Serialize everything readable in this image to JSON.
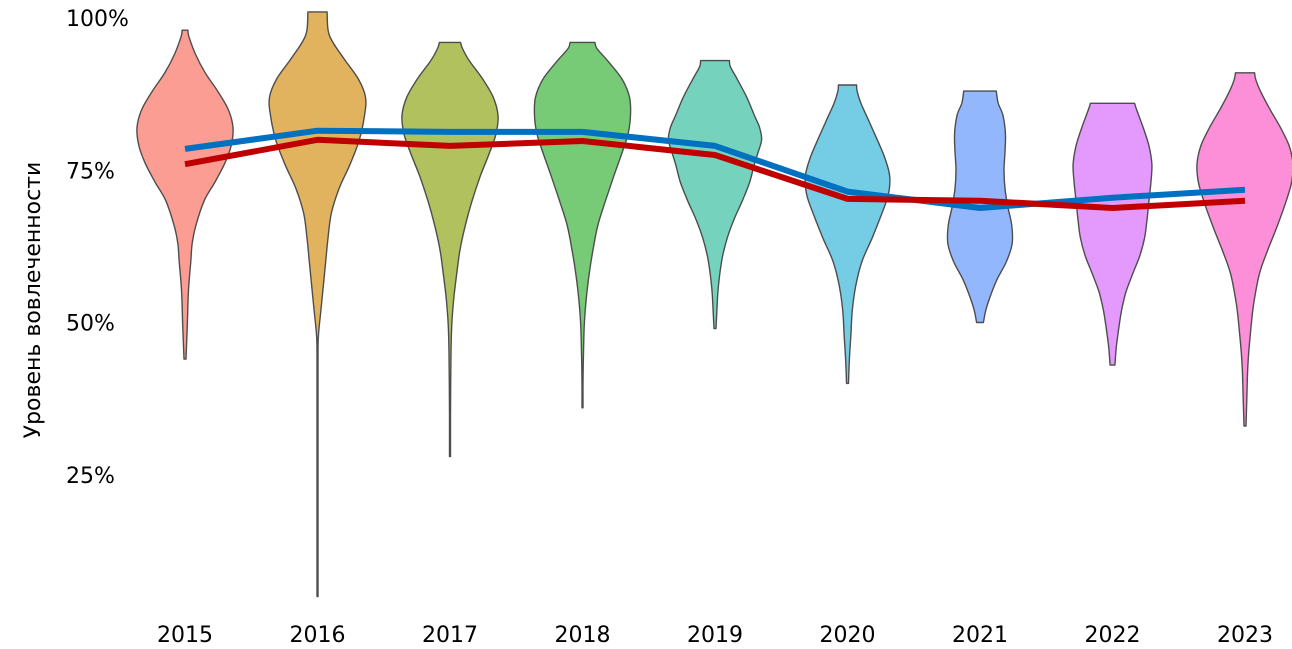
{
  "chart_data": {
    "type": "violin",
    "title": "",
    "xlabel": "",
    "ylabel": "Уровень вовлеченности",
    "ylim": [
      0,
      100
    ],
    "y_ticks": [
      {
        "value": 25,
        "label": "25%"
      },
      {
        "value": 50,
        "label": "50%"
      },
      {
        "value": 75,
        "label": "75%"
      },
      {
        "value": 100,
        "label": "100%"
      }
    ],
    "categories": [
      "2015",
      "2016",
      "2017",
      "2018",
      "2019",
      "2020",
      "2021",
      "2022",
      "2023"
    ],
    "grid": false,
    "legend": "none",
    "violins": [
      {
        "category": "2015",
        "color": "#fc9d94",
        "min": 44,
        "max": 98,
        "profile": [
          [
            44,
            0.02
          ],
          [
            50,
            0.05
          ],
          [
            55,
            0.07
          ],
          [
            60,
            0.12
          ],
          [
            63,
            0.15
          ],
          [
            66,
            0.23
          ],
          [
            70,
            0.4
          ],
          [
            73,
            0.62
          ],
          [
            76,
            0.82
          ],
          [
            79,
            0.96
          ],
          [
            82,
            1.0
          ],
          [
            85,
            0.9
          ],
          [
            88,
            0.68
          ],
          [
            91,
            0.42
          ],
          [
            94,
            0.22
          ],
          [
            97,
            0.08
          ],
          [
            98,
            0.06
          ]
        ]
      },
      {
        "category": "2016",
        "color": "#e2b35f",
        "min": 5,
        "max": 101,
        "profile": [
          [
            5,
            0.01
          ],
          [
            20,
            0.01
          ],
          [
            35,
            0.01
          ],
          [
            45,
            0.01
          ],
          [
            48,
            0.02
          ],
          [
            52,
            0.07
          ],
          [
            56,
            0.12
          ],
          [
            60,
            0.17
          ],
          [
            64,
            0.22
          ],
          [
            68,
            0.29
          ],
          [
            72,
            0.45
          ],
          [
            76,
            0.68
          ],
          [
            80,
            0.87
          ],
          [
            84,
            0.98
          ],
          [
            87,
            1.0
          ],
          [
            90,
            0.85
          ],
          [
            93,
            0.58
          ],
          [
            96,
            0.32
          ],
          [
            98,
            0.22
          ],
          [
            101,
            0.2
          ]
        ]
      },
      {
        "category": "2017",
        "color": "#b1c15e",
        "min": 28,
        "max": 96,
        "profile": [
          [
            28,
            0.01
          ],
          [
            35,
            0.01
          ],
          [
            45,
            0.02
          ],
          [
            50,
            0.04
          ],
          [
            54,
            0.08
          ],
          [
            58,
            0.14
          ],
          [
            62,
            0.21
          ],
          [
            66,
            0.32
          ],
          [
            70,
            0.46
          ],
          [
            74,
            0.63
          ],
          [
            78,
            0.83
          ],
          [
            81,
            0.96
          ],
          [
            84,
            1.0
          ],
          [
            87,
            0.9
          ],
          [
            90,
            0.68
          ],
          [
            93,
            0.4
          ],
          [
            95,
            0.26
          ],
          [
            96,
            0.22
          ]
        ]
      },
      {
        "category": "2018",
        "color": "#77cb77",
        "min": 36,
        "max": 96,
        "profile": [
          [
            36,
            0.01
          ],
          [
            40,
            0.01
          ],
          [
            45,
            0.02
          ],
          [
            50,
            0.04
          ],
          [
            54,
            0.08
          ],
          [
            58,
            0.14
          ],
          [
            62,
            0.22
          ],
          [
            66,
            0.32
          ],
          [
            70,
            0.48
          ],
          [
            74,
            0.65
          ],
          [
            78,
            0.83
          ],
          [
            81,
            0.95
          ],
          [
            84,
            1.0
          ],
          [
            87,
            0.98
          ],
          [
            90,
            0.82
          ],
          [
            93,
            0.52
          ],
          [
            95,
            0.3
          ],
          [
            96,
            0.26
          ]
        ]
      },
      {
        "category": "2019",
        "color": "#75d2bd",
        "min": 49,
        "max": 93,
        "profile": [
          [
            49,
            0.02
          ],
          [
            52,
            0.04
          ],
          [
            55,
            0.06
          ],
          [
            58,
            0.1
          ],
          [
            61,
            0.16
          ],
          [
            64,
            0.26
          ],
          [
            67,
            0.4
          ],
          [
            70,
            0.57
          ],
          [
            73,
            0.72
          ],
          [
            76,
            0.82
          ],
          [
            78,
            0.9
          ],
          [
            80,
            0.97
          ],
          [
            82,
            0.93
          ],
          [
            84,
            0.82
          ],
          [
            87,
            0.66
          ],
          [
            90,
            0.46
          ],
          [
            92,
            0.32
          ],
          [
            93,
            0.3
          ]
        ]
      },
      {
        "category": "2020",
        "color": "#74cce5",
        "min": 40,
        "max": 89,
        "profile": [
          [
            40,
            0.02
          ],
          [
            44,
            0.04
          ],
          [
            48,
            0.07
          ],
          [
            52,
            0.1
          ],
          [
            56,
            0.17
          ],
          [
            60,
            0.3
          ],
          [
            64,
            0.52
          ],
          [
            68,
            0.72
          ],
          [
            71,
            0.85
          ],
          [
            74,
            0.88
          ],
          [
            77,
            0.78
          ],
          [
            80,
            0.62
          ],
          [
            83,
            0.45
          ],
          [
            86,
            0.28
          ],
          [
            88,
            0.2
          ],
          [
            89,
            0.19
          ]
        ]
      },
      {
        "category": "2021",
        "color": "#93b7fc",
        "min": 50,
        "max": 88,
        "profile": [
          [
            50,
            0.07
          ],
          [
            52,
            0.12
          ],
          [
            54,
            0.2
          ],
          [
            57,
            0.35
          ],
          [
            60,
            0.55
          ],
          [
            63,
            0.67
          ],
          [
            66,
            0.66
          ],
          [
            69,
            0.58
          ],
          [
            72,
            0.52
          ],
          [
            75,
            0.5
          ],
          [
            78,
            0.52
          ],
          [
            81,
            0.53
          ],
          [
            84,
            0.48
          ],
          [
            86,
            0.38
          ],
          [
            88,
            0.34
          ]
        ]
      },
      {
        "category": "2022",
        "color": "#e49afc",
        "min": 43,
        "max": 86,
        "profile": [
          [
            43,
            0.05
          ],
          [
            46,
            0.08
          ],
          [
            49,
            0.13
          ],
          [
            52,
            0.19
          ],
          [
            55,
            0.28
          ],
          [
            58,
            0.42
          ],
          [
            61,
            0.57
          ],
          [
            64,
            0.67
          ],
          [
            67,
            0.72
          ],
          [
            70,
            0.76
          ],
          [
            73,
            0.8
          ],
          [
            76,
            0.82
          ],
          [
            79,
            0.76
          ],
          [
            82,
            0.64
          ],
          [
            85,
            0.5
          ],
          [
            86,
            0.46
          ]
        ]
      },
      {
        "category": "2023",
        "color": "#fc8fd8",
        "min": 33,
        "max": 91,
        "profile": [
          [
            33,
            0.02
          ],
          [
            38,
            0.04
          ],
          [
            43,
            0.06
          ],
          [
            48,
            0.11
          ],
          [
            53,
            0.18
          ],
          [
            58,
            0.3
          ],
          [
            62,
            0.48
          ],
          [
            66,
            0.68
          ],
          [
            70,
            0.86
          ],
          [
            73,
            0.97
          ],
          [
            76,
            1.0
          ],
          [
            79,
            0.92
          ],
          [
            82,
            0.74
          ],
          [
            85,
            0.52
          ],
          [
            88,
            0.32
          ],
          [
            90,
            0.22
          ],
          [
            91,
            0.2
          ]
        ]
      }
    ],
    "series": [
      {
        "color": "#0070c0",
        "values": [
          78.5,
          81.5,
          81.3,
          81.3,
          79.0,
          71.5,
          68.8,
          70.5,
          71.8
        ]
      },
      {
        "color": "#c00000",
        "values": [
          76.0,
          80.0,
          79.0,
          79.8,
          77.5,
          70.3,
          70.0,
          68.8,
          70.0
        ]
      }
    ]
  }
}
